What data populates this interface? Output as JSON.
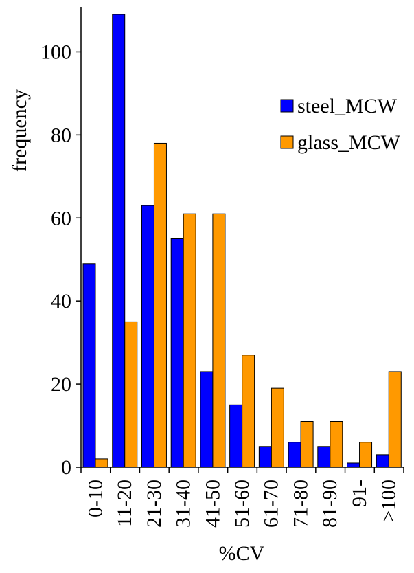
{
  "chart_data": {
    "type": "bar",
    "title": "",
    "xlabel": "%CV",
    "ylabel": "frequency",
    "categories": [
      "0-10",
      "11-20",
      "21-30",
      "31-40",
      "41-50",
      "51-60",
      "61-70",
      "71-80",
      "81-90",
      "91-",
      ">100"
    ],
    "series": [
      {
        "name": "steel_MCW",
        "color": "#0000ff",
        "values": [
          49,
          109,
          63,
          55,
          23,
          15,
          5,
          6,
          5,
          1,
          3
        ]
      },
      {
        "name": "glass_MCW",
        "color": "#ff9900",
        "values": [
          2,
          35,
          78,
          61,
          61,
          27,
          19,
          11,
          11,
          6,
          23
        ]
      }
    ],
    "ylim": [
      0,
      110
    ],
    "yticks": [
      0,
      20,
      40,
      60,
      80,
      100
    ],
    "grid": false,
    "legend": "top-right"
  }
}
